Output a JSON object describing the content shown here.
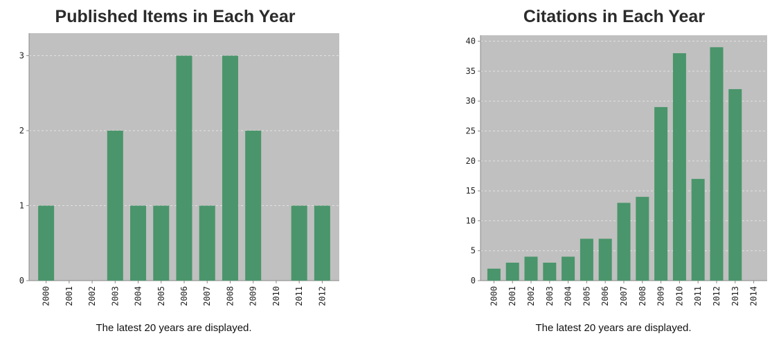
{
  "chart_data": [
    {
      "type": "bar",
      "title": "Published Items in Each Year",
      "note": "The latest 20 years are displayed.",
      "categories": [
        "2000",
        "2001",
        "2002",
        "2003",
        "2004",
        "2005",
        "2006",
        "2007",
        "2008",
        "2009",
        "2010",
        "2011",
        "2012"
      ],
      "values": [
        1,
        0,
        0,
        2,
        1,
        1,
        3,
        1,
        3,
        2,
        0,
        1,
        1
      ],
      "yticks": [
        0,
        1,
        2,
        3
      ],
      "ylim": [
        0,
        3.3
      ],
      "grid": true,
      "colors": {
        "bar": "#4a956b",
        "plot_bg": "#c0c0c0"
      }
    },
    {
      "type": "bar",
      "title": "Citations in Each Year",
      "note": "The latest 20 years are displayed.",
      "categories": [
        "2000",
        "2001",
        "2002",
        "2003",
        "2004",
        "2005",
        "2006",
        "2007",
        "2008",
        "2009",
        "2010",
        "2011",
        "2012",
        "2013",
        "2014"
      ],
      "values": [
        2,
        3,
        4,
        3,
        4,
        7,
        7,
        13,
        14,
        29,
        38,
        17,
        39,
        32,
        0
      ],
      "yticks": [
        0,
        5,
        10,
        15,
        20,
        25,
        30,
        35,
        40
      ],
      "ylim": [
        0,
        41
      ],
      "grid": true,
      "colors": {
        "bar": "#4a956b",
        "plot_bg": "#c0c0c0"
      }
    }
  ]
}
